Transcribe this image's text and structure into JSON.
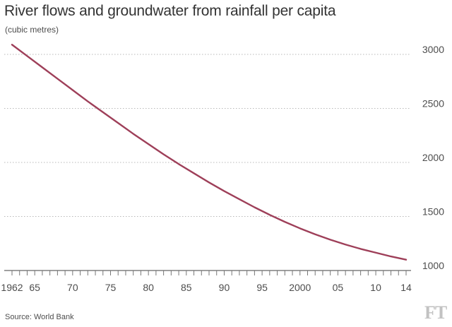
{
  "chart_data": {
    "type": "line",
    "title": "River flows and groundwater from rainfall per capita",
    "subtitle": "(cubic metres)",
    "source": "Source: World Bank",
    "brand": "FT",
    "xlabel": "",
    "ylabel": "",
    "xlim": [
      1962,
      2014
    ],
    "ylim": [
      1000,
      3000
    ],
    "yticks": [
      1000,
      1500,
      2000,
      2500,
      3000
    ],
    "ytick_labels": [
      "1000",
      "1500",
      "2000",
      "2500",
      "3000"
    ],
    "xticks": [
      1962,
      1965,
      1970,
      1975,
      1980,
      1985,
      1990,
      1995,
      2000,
      2005,
      2010,
      2014
    ],
    "xtick_labels": [
      "1962",
      "65",
      "70",
      "75",
      "80",
      "85",
      "90",
      "95",
      "2000",
      "05",
      "10",
      "14"
    ],
    "grid": "horizontal dotted",
    "line_color": "#9e3f59",
    "x": [
      1962,
      1964,
      1966,
      1968,
      1970,
      1972,
      1974,
      1976,
      1978,
      1980,
      1982,
      1984,
      1986,
      1988,
      1990,
      1992,
      1994,
      1996,
      1998,
      2000,
      2002,
      2004,
      2006,
      2008,
      2010,
      2012,
      2014
    ],
    "y": [
      3090,
      2985,
      2880,
      2775,
      2670,
      2565,
      2465,
      2365,
      2265,
      2170,
      2075,
      1985,
      1900,
      1815,
      1735,
      1660,
      1585,
      1515,
      1450,
      1390,
      1335,
      1285,
      1240,
      1200,
      1165,
      1130,
      1100
    ]
  }
}
